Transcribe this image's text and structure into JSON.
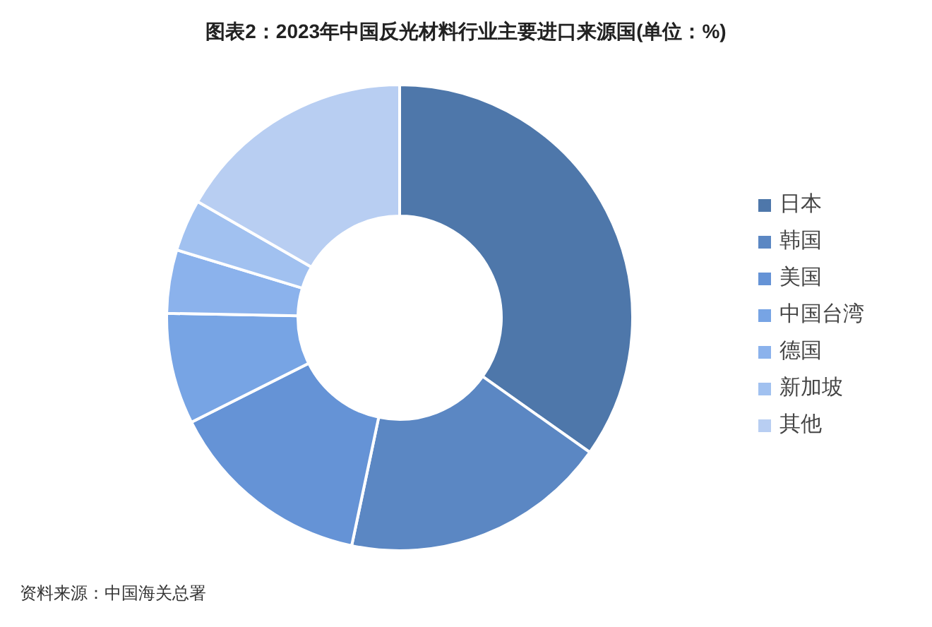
{
  "chart_data": {
    "type": "donut",
    "title": "图表2：2023年中国反光材料行业主要进口来源国(单位：%)",
    "categories": [
      "日本",
      "韩国",
      "美国",
      "中国台湾",
      "德国",
      "新加坡",
      "其他"
    ],
    "values": [
      34.8,
      18.5,
      14.3,
      7.7,
      4.4,
      3.6,
      16.7
    ],
    "colors": [
      "#4e77aa",
      "#5b87c3",
      "#6593d6",
      "#77a4e4",
      "#8bb2ec",
      "#a1c1f0",
      "#b8cef2"
    ],
    "legend": "right",
    "annotations": [
      "资料来源：中国海关总署"
    ]
  }
}
